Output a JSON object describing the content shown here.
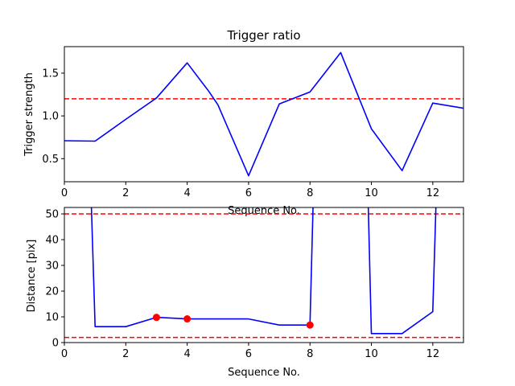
{
  "colors": {
    "line": "#0000ff",
    "threshold": "#ff0000",
    "marker": "#ff0000",
    "axes": "#000000",
    "background": "#ffffff"
  },
  "chart_data": [
    {
      "type": "line",
      "title": "Trigger ratio",
      "xlabel": "Sequence No.",
      "ylabel": "Trigger strength",
      "xlim": [
        0,
        13
      ],
      "ylim": [
        0.23,
        1.81
      ],
      "xticks": [
        0,
        2,
        4,
        6,
        8,
        10,
        12
      ],
      "yticks": [
        0.5,
        1.0,
        1.5
      ],
      "ytick_labels": [
        "0.5",
        "1.0",
        "1.5"
      ],
      "grid": false,
      "series": [
        {
          "x": [
            0,
            1,
            2,
            3,
            4,
            4.7,
            5,
            6,
            7,
            8,
            9,
            10,
            11,
            12,
            13
          ],
          "y": [
            0.71,
            0.705,
            0.96,
            1.21,
            1.62,
            1.29,
            1.13,
            0.3,
            1.14,
            1.28,
            1.74,
            0.85,
            0.36,
            1.15,
            1.09
          ]
        }
      ],
      "hlines": [
        1.2
      ]
    },
    {
      "type": "line",
      "title": "",
      "xlabel": "Sequence No.",
      "ylabel": "Distance [pix]",
      "xlim": [
        0,
        13
      ],
      "ylim": [
        0,
        52.5
      ],
      "xticks": [
        0,
        2,
        4,
        6,
        8,
        10,
        12
      ],
      "yticks": [
        0,
        10,
        20,
        30,
        40,
        50
      ],
      "grid": false,
      "series": [
        {
          "x": [
            0.88,
            1,
            2,
            3,
            4,
            5,
            6,
            7,
            8,
            8.1
          ],
          "y": [
            52.5,
            6.2,
            6.2,
            9.8,
            9.2,
            9.2,
            9.2,
            6.8,
            6.8,
            52.5
          ]
        },
        {
          "x": [
            9.9,
            10,
            11,
            12,
            12.1
          ],
          "y": [
            52.5,
            3.5,
            3.5,
            12,
            52.5
          ]
        }
      ],
      "markers": {
        "x": [
          3,
          4,
          8
        ],
        "y": [
          9.8,
          9.2,
          6.8
        ]
      },
      "hlines": [
        50,
        2
      ]
    }
  ]
}
